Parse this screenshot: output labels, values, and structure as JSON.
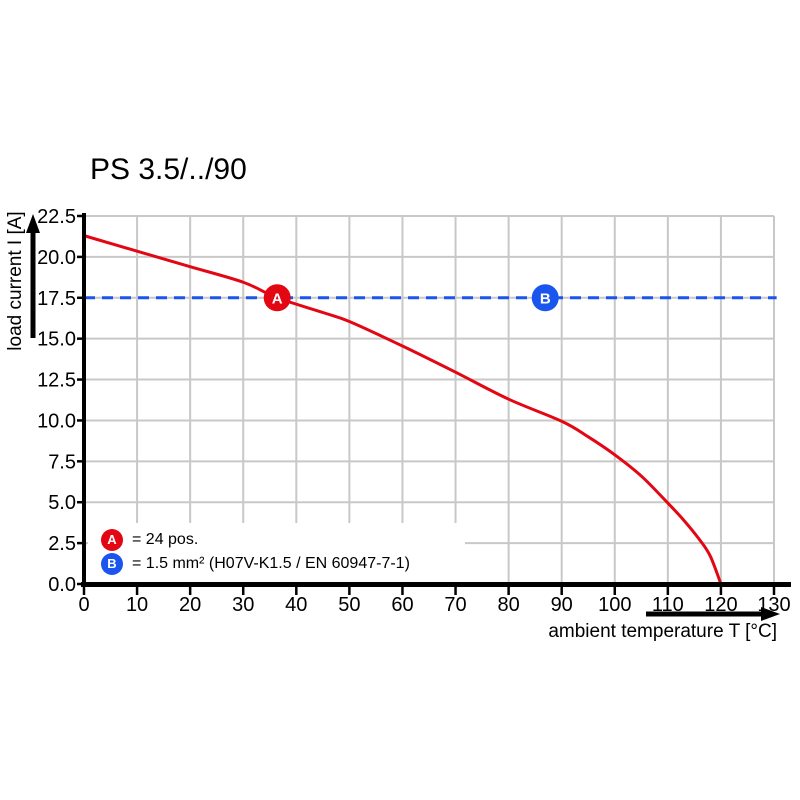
{
  "title": "PS 3.5/../90",
  "colors": {
    "red": "#e30613",
    "blue": "#1a55ee",
    "grid": "#c8c8c8",
    "axis": "#000000",
    "background": "#ffffff"
  },
  "chart_data": {
    "type": "line",
    "title": "PS 3.5/../90",
    "xlabel": "ambient temperature T [°C]",
    "ylabel": "load current I [A]",
    "xlim": [
      0,
      130
    ],
    "ylim": [
      0,
      22.5
    ],
    "grid": true,
    "legend_position": "bottom-left-inside",
    "x_ticks": [
      0,
      10,
      20,
      30,
      40,
      50,
      60,
      70,
      80,
      90,
      100,
      110,
      120,
      130
    ],
    "x_tick_labels": [
      "0",
      "10",
      "20",
      "30",
      "40",
      "50",
      "60",
      "70",
      "80",
      "90",
      "100",
      "110",
      "120",
      "130"
    ],
    "y_ticks": [
      0,
      2.5,
      5,
      7.5,
      10,
      12.5,
      15,
      17.5,
      20,
      22.5
    ],
    "y_tick_labels": [
      "0.0",
      "2.5",
      "5.0",
      "7.5",
      "10.0",
      "12.5",
      "15.0",
      "17.5",
      "20.0",
      "22.5"
    ],
    "series": [
      {
        "name": "derating-curve-24pos",
        "color": "#e30613",
        "style": "solid",
        "points": [
          [
            0,
            21.3
          ],
          [
            10,
            20.35
          ],
          [
            20,
            19.4
          ],
          [
            30,
            18.45
          ],
          [
            36.4,
            17.5
          ],
          [
            45,
            16.6
          ],
          [
            50,
            16.05
          ],
          [
            60,
            14.55
          ],
          [
            70,
            12.95
          ],
          [
            80,
            11.3
          ],
          [
            90,
            9.95
          ],
          [
            95,
            9.0
          ],
          [
            100,
            7.9
          ],
          [
            105,
            6.6
          ],
          [
            110,
            4.95
          ],
          [
            113,
            3.9
          ],
          [
            116,
            2.7
          ],
          [
            118,
            1.7
          ],
          [
            120,
            0
          ]
        ]
      },
      {
        "name": "reference-current-17.5A",
        "color": "#1a55ee",
        "style": "dashed",
        "points": [
          [
            0,
            17.5
          ],
          [
            130.5,
            17.5
          ]
        ]
      }
    ],
    "markers": [
      {
        "label": "A",
        "x": 36.4,
        "y": 17.5,
        "color": "#e30613"
      },
      {
        "label": "B",
        "x": 86.9,
        "y": 17.5,
        "color": "#1a55ee"
      }
    ],
    "legend": [
      {
        "label": "A",
        "color": "#e30613",
        "text": "= 24 pos."
      },
      {
        "label": "B",
        "color": "#1a55ee",
        "text": "= 1.5 mm² (H07V-K1.5 / EN 60947-7-1)"
      }
    ]
  }
}
